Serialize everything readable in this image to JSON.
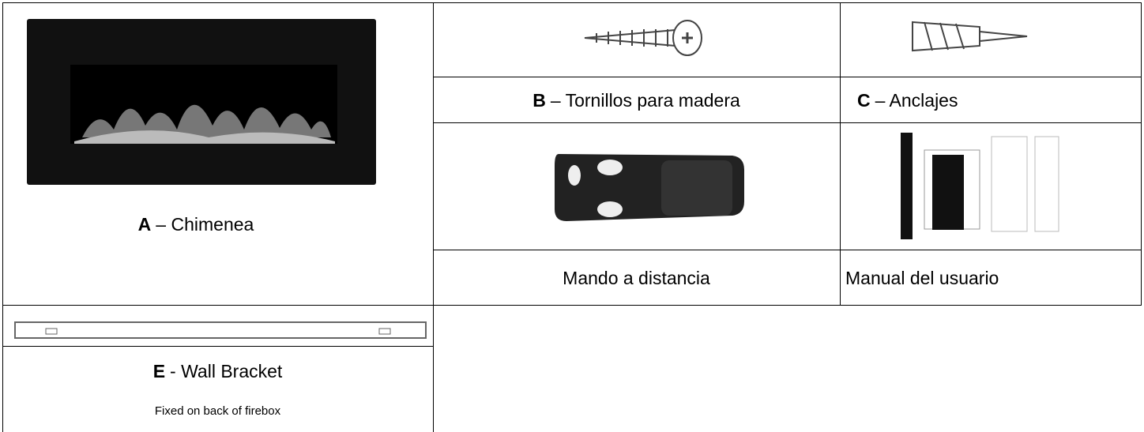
{
  "parts": [
    {
      "letter": "A",
      "label": "– Chimenea"
    },
    {
      "letter": "B",
      "label": "– Tornillos para madera"
    },
    {
      "letter": "C",
      "label": "– Anclajes"
    },
    {
      "label": "Mando a distancia"
    },
    {
      "label": "Manual del usuario"
    },
    {
      "letter": "E",
      "label": "- Wall Bracket",
      "note": "Fixed on back of firebox"
    }
  ]
}
